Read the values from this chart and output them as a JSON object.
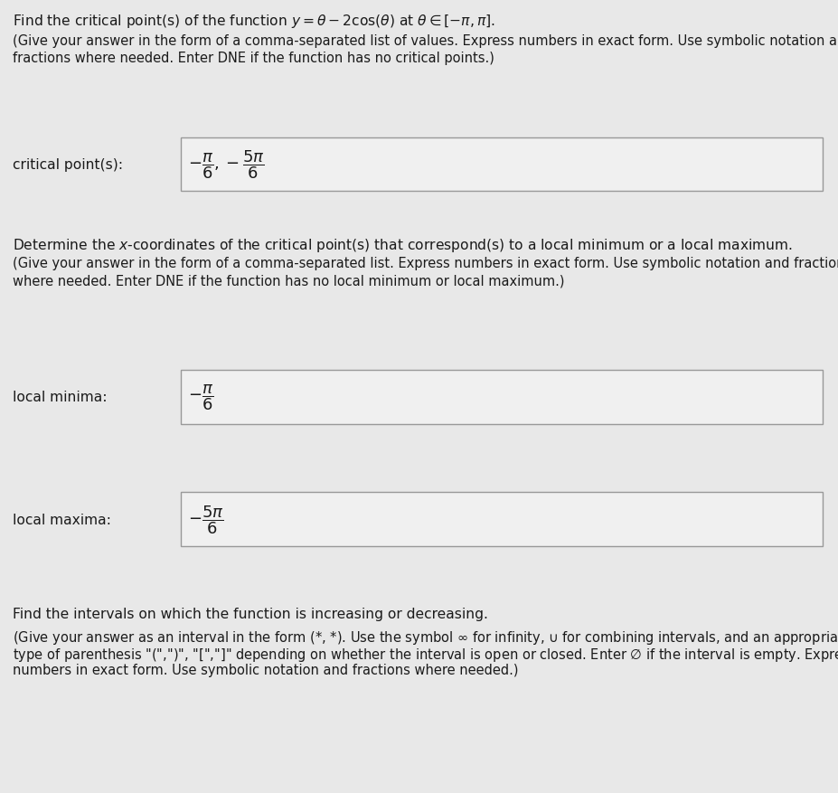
{
  "background_color": "#e8e8e8",
  "box_bg_color": "#f0f0f0",
  "box_edge_color": "#999999",
  "text_color": "#1a1a1a",
  "title_line": "Find the critical point(s) of the function $y = \\theta - 2\\cos(\\theta)$ at $\\theta \\in [-\\pi, \\pi]$.",
  "instruction1_l1": "(Give your answer in the form of a comma-separated list of values. Express numbers in exact form. Use symbolic notation and",
  "instruction1_l2": "fractions where needed. Enter DNE if the function has no critical points.)",
  "label_critical": "critical point(s):",
  "answer_critical": "$-\\dfrac{\\pi}{6}, -\\dfrac{5\\pi}{6}$",
  "section2_title": "Determine the $x$-coordinates of the critical point(s) that correspond(s) to a local minimum or a local maximum.",
  "instruction2_l1": "(Give your answer in the form of a comma-separated list. Express numbers in exact form. Use symbolic notation and fractions",
  "instruction2_l2": "where needed. Enter DNE if the function has no local minimum or local maximum.)",
  "label_minima": "local minima:",
  "answer_minima": "$-\\dfrac{\\pi}{6}$",
  "label_maxima": "local maxima:",
  "answer_maxima": "$-\\dfrac{5\\pi}{6}$",
  "section3_title": "Find the intervals on which the function is increasing or decreasing.",
  "instruction3_l1": "(Give your answer as an interval in the form (*, *). Use the symbol $\\infty$ for infinity, $\\cup$ for combining intervals, and an appropriate",
  "instruction3_l2": "type of parenthesis \"(\",\")\", \"[\",\"]\" depending on whether the interval is open or closed. Enter $\\emptyset$ if the interval is empty. Express",
  "instruction3_l3": "numbers in exact form. Use symbolic notation and fractions where needed.)"
}
